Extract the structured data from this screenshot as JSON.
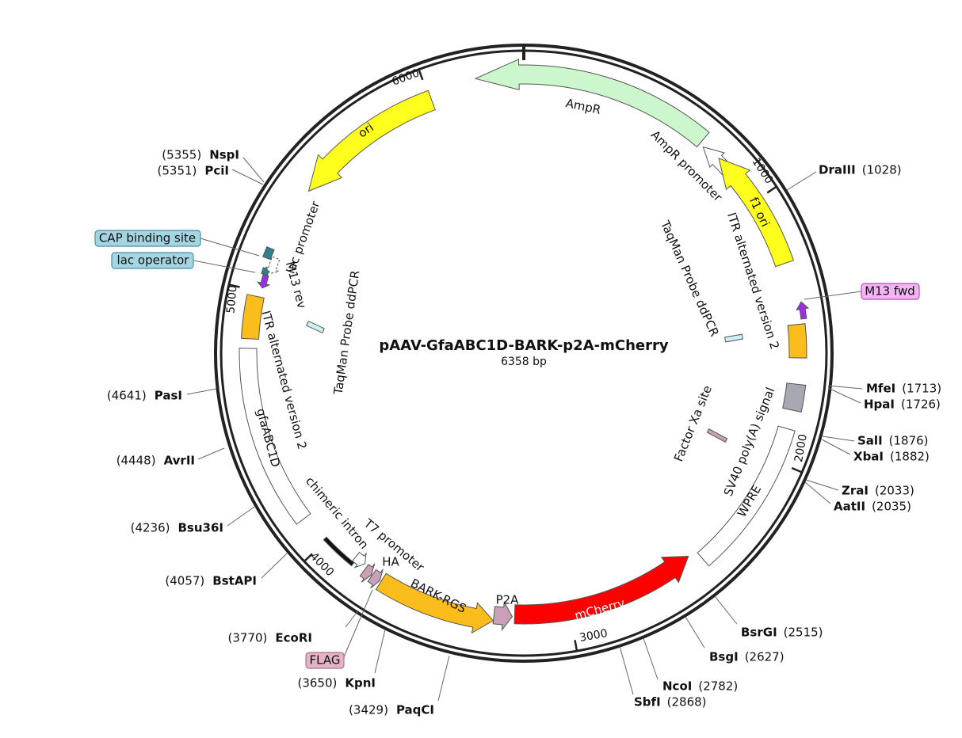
{
  "title": "pAAV-GfaABC1D-BARK-p2A-mCherry",
  "length": "6358 bp",
  "ticks": [
    "1000",
    "2000",
    "3000",
    "4000",
    "5000",
    "6000"
  ],
  "features": [
    {
      "label": "AmpR"
    },
    {
      "label": "AmpR promoter"
    },
    {
      "label": "f1 ori"
    },
    {
      "label": "ITR alternated version 2"
    },
    {
      "label": "M13 fwd"
    },
    {
      "label": "TaqMan Probe ddPCR"
    },
    {
      "label": "SV40 poly(A) signal"
    },
    {
      "label": "Factor Xa site"
    },
    {
      "label": "WPRE"
    },
    {
      "label": "mCherry"
    },
    {
      "label": "P2A"
    },
    {
      "label": "BARK-RGS"
    },
    {
      "label": "HA"
    },
    {
      "label": "FLAG"
    },
    {
      "label": "T7 promoter"
    },
    {
      "label": "chimeric intron"
    },
    {
      "label": "gfaABC1D"
    },
    {
      "label": "ITR alternated version 2"
    },
    {
      "label": "TaqMan Probe ddPCR"
    },
    {
      "label": "M13 rev"
    },
    {
      "label": "lac operator"
    },
    {
      "label": "lac promoter"
    },
    {
      "label": "CAP binding site"
    },
    {
      "label": "ori"
    }
  ],
  "sites": [
    {
      "name": "DraIII",
      "position": "(1028)"
    },
    {
      "name": "MfeI",
      "position": "(1713)"
    },
    {
      "name": "HpaI",
      "position": "(1726)"
    },
    {
      "name": "SalI",
      "position": "(1876)"
    },
    {
      "name": "XbaI",
      "position": "(1882)"
    },
    {
      "name": "ZraI",
      "position": "(2033)"
    },
    {
      "name": "AatII",
      "position": "(2035)"
    },
    {
      "name": "BsrGI",
      "position": "(2515)"
    },
    {
      "name": "BsgI",
      "position": "(2627)"
    },
    {
      "name": "NcoI",
      "position": "(2782)"
    },
    {
      "name": "SbfI",
      "position": "(2868)"
    },
    {
      "name": "NspI",
      "position": "(5355)"
    },
    {
      "name": "PciI",
      "position": "(5351)"
    },
    {
      "name": "PasI",
      "position": "(4641)"
    },
    {
      "name": "AvrII",
      "position": "(4448)"
    },
    {
      "name": "Bsu36I",
      "position": "(4236)"
    },
    {
      "name": "BstAPI",
      "position": "(4057)"
    },
    {
      "name": "EcoRI",
      "position": "(3770)"
    },
    {
      "name": "KpnI",
      "position": "(3650)"
    },
    {
      "name": "PaqCI",
      "position": "(3429)"
    }
  ]
}
